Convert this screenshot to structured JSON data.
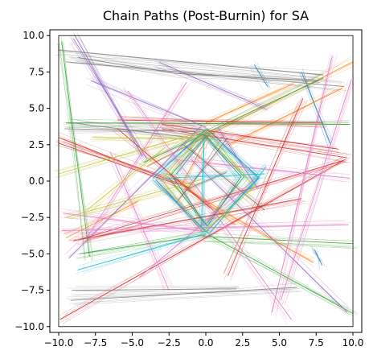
{
  "chart_data": {
    "type": "line",
    "title": "Chain Paths (Post-Burnin) for SA",
    "xlabel": "",
    "ylabel": "",
    "xlim": [
      -10.6,
      10.6
    ],
    "ylim": [
      -10.4,
      10.4
    ],
    "frame": {
      "x": [
        -10,
        10
      ],
      "y": [
        -10,
        10
      ]
    },
    "grid": false,
    "xticks": [
      -10.0,
      -7.5,
      -5.0,
      -2.5,
      0.0,
      2.5,
      5.0,
      7.5,
      10.0
    ],
    "xtick_labels": [
      "−10.0",
      "−7.5",
      "−5.0",
      "−2.5",
      "0.0",
      "2.5",
      "5.0",
      "7.5",
      "10.0"
    ],
    "yticks": [
      10.0,
      7.5,
      5.0,
      2.5,
      0.0,
      -2.5,
      -5.0,
      -7.5,
      -10.0
    ],
    "ytick_labels": [
      "10.0",
      "7.5",
      "5.0",
      "2.5",
      "0.0",
      "−2.5",
      "−5.0",
      "−7.5",
      "−10.0"
    ],
    "series": [
      {
        "color": "#1f77b4",
        "paths": [
          [
            [
              -3.5,
              0.3
            ],
            [
              0.1,
              3.6
            ],
            [
              3.6,
              0.2
            ],
            [
              0.0,
              -3.5
            ],
            [
              -3.4,
              0.1
            ]
          ],
          [
            [
              -2.0,
              0.5
            ],
            [
              0.0,
              3.0
            ],
            [
              2.4,
              0.3
            ],
            [
              0.1,
              -3.1
            ],
            [
              -2.2,
              0.2
            ]
          ],
          [
            [
              6.5,
              7.5
            ],
            [
              8.5,
              2.5
            ]
          ],
          [
            [
              3.3,
              8.0
            ],
            [
              4.2,
              6.5
            ]
          ],
          [
            [
              7.4,
              -4.7
            ],
            [
              7.9,
              -5.8
            ]
          ]
        ]
      },
      {
        "color": "#ff7f0e",
        "paths": [
          [
            [
              1.5,
              2.5
            ],
            [
              9.3,
              6.4
            ]
          ],
          [
            [
              -4.0,
              1.0
            ],
            [
              10.0,
              8.2
            ]
          ],
          [
            [
              -9.5,
              -3.9
            ],
            [
              -4.6,
              -1.4
            ]
          ],
          [
            [
              -1.5,
              -0.5
            ],
            [
              7.3,
              -5.6
            ]
          ],
          [
            [
              0.0,
              4.0
            ],
            [
              6.0,
              6.7
            ]
          ],
          [
            [
              -2.5,
              0.5
            ],
            [
              2.0,
              -3.0
            ]
          ],
          [
            [
              -1.6,
              -0.2
            ],
            [
              0.3,
              3.4
            ]
          ]
        ]
      },
      {
        "color": "#2ca02c",
        "paths": [
          [
            [
              -9.8,
              9.6
            ],
            [
              -7.9,
              -5.2
            ]
          ],
          [
            [
              -4.2,
              1.3
            ],
            [
              8.0,
              7.1
            ]
          ],
          [
            [
              -9.5,
              4.0
            ],
            [
              9.8,
              3.9
            ]
          ],
          [
            [
              -8.6,
              -5.0
            ],
            [
              0.0,
              -3.7
            ]
          ],
          [
            [
              0.2,
              -3.7
            ],
            [
              10.0,
              -9.1
            ]
          ],
          [
            [
              -0.2,
              -3.8
            ],
            [
              10.0,
              -4.3
            ]
          ],
          [
            [
              -2.4,
              0.4
            ],
            [
              0.0,
              3.1
            ],
            [
              2.6,
              0.3
            ],
            [
              0.0,
              -3.0
            ],
            [
              -2.5,
              0.2
            ]
          ]
        ]
      },
      {
        "color": "#d62728",
        "paths": [
          [
            [
              -10.0,
              3.0
            ],
            [
              -1.0,
              -0.5
            ]
          ],
          [
            [
              -10.0,
              2.6
            ],
            [
              -2.0,
              -0.2
            ]
          ],
          [
            [
              9.5,
              1.5
            ],
            [
              -9.9,
              -9.5
            ]
          ],
          [
            [
              -9.0,
              -4.1
            ],
            [
              6.5,
              -1.2
            ]
          ],
          [
            [
              -8.5,
              -4.0
            ],
            [
              9.3,
              1.4
            ]
          ],
          [
            [
              -3.0,
              3.6
            ],
            [
              9.6,
              1.6
            ]
          ],
          [
            [
              -3.0,
              3.9
            ],
            [
              9.0,
              2.2
            ]
          ],
          [
            [
              0.5,
              -2.0
            ],
            [
              -6.0,
              3.6
            ]
          ],
          [
            [
              -6.0,
              4.2
            ],
            [
              8.0,
              4.0
            ]
          ],
          [
            [
              6.6,
              5.7
            ],
            [
              1.5,
              -6.5
            ]
          ]
        ]
      },
      {
        "color": "#9467bd",
        "paths": [
          [
            [
              -8.9,
              10.0
            ],
            [
              -4.3,
              1.7
            ]
          ],
          [
            [
              -9.0,
              9.8
            ],
            [
              -4.0,
              1.5
            ]
          ],
          [
            [
              -7.8,
              6.9
            ],
            [
              0.0,
              3.7
            ]
          ],
          [
            [
              -3.2,
              8.2
            ],
            [
              4.2,
              4.9
            ]
          ],
          [
            [
              -1.0,
              1.5
            ],
            [
              9.6,
              -9.0
            ]
          ],
          [
            [
              -0.3,
              3.8
            ],
            [
              -9.3,
              -5.3
            ]
          ],
          [
            [
              0.8,
              3.7
            ],
            [
              3.5,
              -0.5
            ]
          ],
          [
            [
              -3.3,
              0.0
            ],
            [
              -0.2,
              -3.5
            ]
          ]
        ]
      },
      {
        "color": "#8c564b",
        "paths": [
          [
            [
              -1.5,
              2.5
            ],
            [
              4.0,
              -2.0
            ]
          ],
          [
            [
              -2.0,
              -1.5
            ],
            [
              1.5,
              3.0
            ]
          ]
        ]
      },
      {
        "color": "#e377c2",
        "paths": [
          [
            [
              -2.2,
              1.5
            ],
            [
              9.8,
              0.2
            ]
          ],
          [
            [
              -4.5,
              -6.6
            ],
            [
              3.4,
              0.2
            ]
          ],
          [
            [
              8.6,
              8.6
            ],
            [
              4.5,
              -9.0
            ]
          ],
          [
            [
              -6.5,
              2.0
            ],
            [
              -2.5,
              -7.5
            ]
          ],
          [
            [
              -9.7,
              -2.2
            ],
            [
              0.2,
              -3.5
            ]
          ],
          [
            [
              -9.8,
              -3.4
            ],
            [
              9.7,
              -3.0
            ]
          ],
          [
            [
              9.9,
              7.0
            ],
            [
              5.1,
              -8.2
            ]
          ],
          [
            [
              -8.1,
              -3.9
            ],
            [
              -1.3,
              6.8
            ]
          ],
          [
            [
              -5.3,
              6.2
            ],
            [
              5.8,
              -9.5
            ]
          ]
        ]
      },
      {
        "color": "#7f7f7f",
        "paths": [
          [
            [
              -10.0,
              9.0
            ],
            [
              8.0,
              7.3
            ]
          ],
          [
            [
              -9.5,
              8.2
            ],
            [
              9.4,
              6.5
            ]
          ],
          [
            [
              -8.7,
              8.5
            ],
            [
              -2.1,
              7.4
            ],
            [
              7.6,
              6.9
            ]
          ],
          [
            [
              -9.2,
              -8.2
            ],
            [
              6.2,
              -7.3
            ]
          ],
          [
            [
              -9.1,
              -7.5
            ],
            [
              2.1,
              -7.4
            ]
          ],
          [
            [
              -9.6,
              3.6
            ],
            [
              -0.7,
              3.4
            ]
          ],
          [
            [
              -9.0,
              4.0
            ],
            [
              -1.2,
              3.0
            ]
          ],
          [
            [
              -1.4,
              -0.6
            ],
            [
              1.4,
              0.6
            ]
          ]
        ]
      },
      {
        "color": "#bcbd22",
        "paths": [
          [
            [
              -7.7,
              3.0
            ],
            [
              -0.8,
              2.9
            ]
          ],
          [
            [
              -9.5,
              -2.5
            ],
            [
              -0.3,
              0.1
            ]
          ],
          [
            [
              -8.1,
              -2.0
            ],
            [
              -2.8,
              2.3
            ]
          ],
          [
            [
              -10.0,
              0.5
            ],
            [
              0.1,
              3.5
            ]
          ],
          [
            [
              0.0,
              3.6
            ],
            [
              -3.0,
              0.1
            ],
            [
              -0.2,
              -3.5
            ],
            [
              3.3,
              -0.4
            ],
            [
              0.1,
              3.4
            ]
          ]
        ]
      },
      {
        "color": "#17becf",
        "paths": [
          [
            [
              -3.6,
              0.2
            ],
            [
              -0.1,
              3.5
            ],
            [
              3.6,
              0.3
            ],
            [
              0.2,
              -3.6
            ],
            [
              -3.6,
              0.1
            ]
          ],
          [
            [
              -8.7,
              -6.1
            ],
            [
              0.0,
              -3.6
            ]
          ],
          [
            [
              -2.9,
              0.2
            ],
            [
              4.0,
              0.5
            ]
          ],
          [
            [
              -0.3,
              -3.2
            ],
            [
              -0.1,
              3.2
            ]
          ],
          [
            [
              4.1,
              1.0
            ],
            [
              3.0,
              -0.5
            ]
          ]
        ]
      }
    ]
  }
}
